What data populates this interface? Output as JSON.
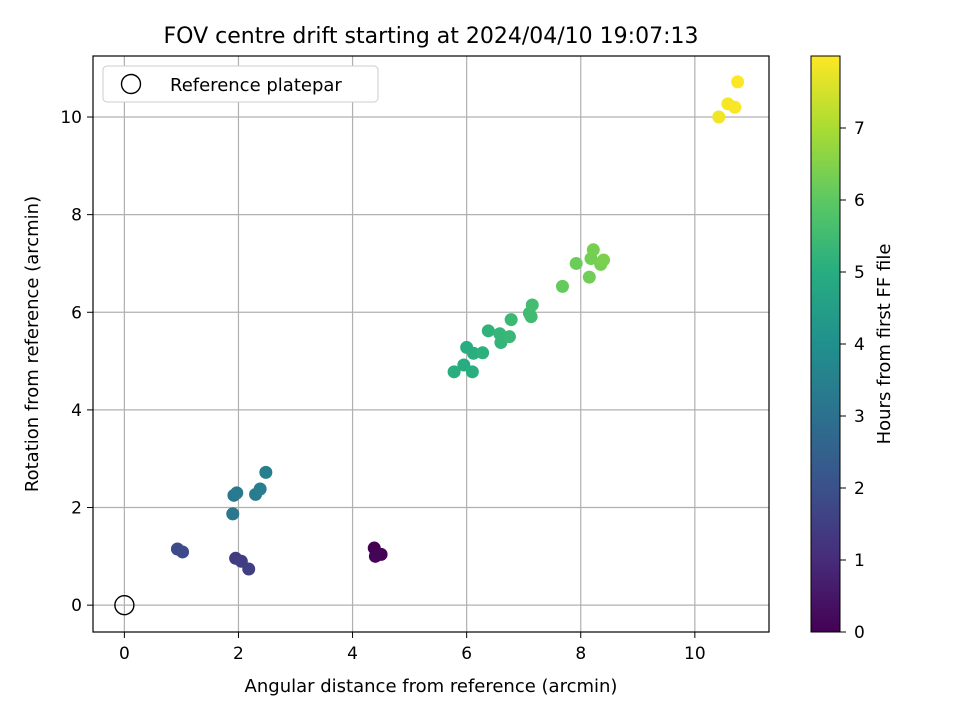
{
  "chart_data": {
    "type": "scatter",
    "title": "FOV centre drift starting at 2024/04/10 19:07:13",
    "xlabel": "Angular distance from reference (arcmin)",
    "ylabel": "Rotation from reference (arcmin)",
    "xlim": [
      -0.55,
      11.3
    ],
    "ylim": [
      -0.55,
      11.25
    ],
    "xticks": [
      0,
      2,
      4,
      6,
      8,
      10
    ],
    "yticks": [
      0,
      2,
      4,
      6,
      8,
      10
    ],
    "grid": true,
    "legend": {
      "location": "top-left",
      "entries": [
        "Reference platepar"
      ]
    },
    "reference_point": {
      "x": 0,
      "y": 0,
      "label": "Reference platepar"
    },
    "colorbar": {
      "label": "Hours from first FF file",
      "range": [
        0,
        8.0
      ],
      "ticks": [
        0,
        1,
        2,
        3,
        4,
        5,
        6,
        7
      ],
      "colormap": "viridis"
    },
    "points": [
      {
        "x": 4.38,
        "y": 1.17,
        "h": 0.0
      },
      {
        "x": 4.5,
        "y": 1.04,
        "h": 0.05
      },
      {
        "x": 4.4,
        "y": 1.0,
        "h": 0.1
      },
      {
        "x": 0.93,
        "y": 1.15,
        "h": 1.8
      },
      {
        "x": 1.02,
        "y": 1.09,
        "h": 1.85
      },
      {
        "x": 1.95,
        "y": 0.96,
        "h": 1.4
      },
      {
        "x": 2.05,
        "y": 0.9,
        "h": 1.45
      },
      {
        "x": 2.18,
        "y": 0.74,
        "h": 1.5
      },
      {
        "x": 1.9,
        "y": 1.87,
        "h": 3.2
      },
      {
        "x": 1.92,
        "y": 2.25,
        "h": 3.25
      },
      {
        "x": 1.97,
        "y": 2.3,
        "h": 3.3
      },
      {
        "x": 2.3,
        "y": 2.27,
        "h": 3.35
      },
      {
        "x": 2.38,
        "y": 2.38,
        "h": 3.4
      },
      {
        "x": 2.48,
        "y": 2.72,
        "h": 3.45
      },
      {
        "x": 5.78,
        "y": 4.78,
        "h": 5.05
      },
      {
        "x": 5.95,
        "y": 4.92,
        "h": 5.0
      },
      {
        "x": 6.1,
        "y": 4.78,
        "h": 5.05
      },
      {
        "x": 6.0,
        "y": 5.28,
        "h": 5.0
      },
      {
        "x": 6.12,
        "y": 5.16,
        "h": 5.05
      },
      {
        "x": 6.28,
        "y": 5.17,
        "h": 5.1
      },
      {
        "x": 6.38,
        "y": 5.62,
        "h": 5.2
      },
      {
        "x": 6.6,
        "y": 5.38,
        "h": 5.25
      },
      {
        "x": 6.58,
        "y": 5.56,
        "h": 5.3
      },
      {
        "x": 6.75,
        "y": 5.5,
        "h": 5.35
      },
      {
        "x": 6.78,
        "y": 5.85,
        "h": 5.4
      },
      {
        "x": 7.1,
        "y": 5.98,
        "h": 5.45
      },
      {
        "x": 7.13,
        "y": 5.91,
        "h": 5.5
      },
      {
        "x": 7.15,
        "y": 6.15,
        "h": 5.55
      },
      {
        "x": 7.68,
        "y": 6.53,
        "h": 6.1
      },
      {
        "x": 7.92,
        "y": 7.0,
        "h": 6.2
      },
      {
        "x": 8.15,
        "y": 6.72,
        "h": 6.25
      },
      {
        "x": 8.18,
        "y": 7.1,
        "h": 6.3
      },
      {
        "x": 8.22,
        "y": 7.28,
        "h": 6.35
      },
      {
        "x": 8.35,
        "y": 6.98,
        "h": 6.35
      },
      {
        "x": 8.4,
        "y": 7.07,
        "h": 6.4
      },
      {
        "x": 10.42,
        "y": 10.0,
        "h": 7.85
      },
      {
        "x": 10.58,
        "y": 10.27,
        "h": 7.9
      },
      {
        "x": 10.7,
        "y": 10.2,
        "h": 7.95
      },
      {
        "x": 10.75,
        "y": 10.72,
        "h": 8.0
      }
    ]
  }
}
